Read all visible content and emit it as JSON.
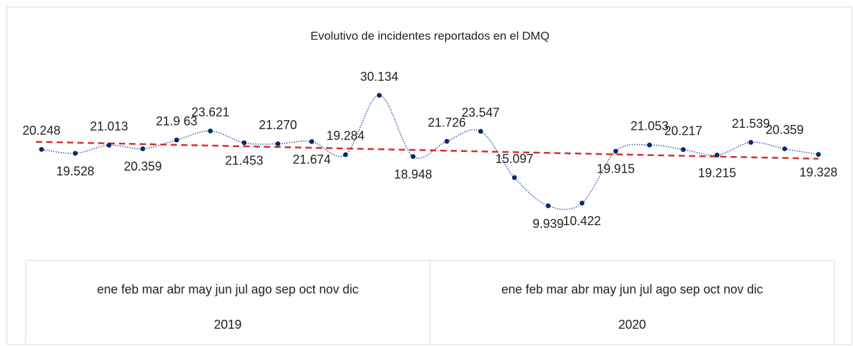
{
  "chart_data": {
    "type": "line",
    "title": "Evolutivo de incidentes reportados en el DMQ",
    "categories": [
      "ene",
      "feb",
      "mar",
      "abr",
      "may",
      "jun",
      "jul",
      "ago",
      "sep",
      "oct",
      "nov",
      "dic",
      "ene",
      "feb",
      "mar",
      "abr",
      "may",
      "jun",
      "jul",
      "ago",
      "sep",
      "oct",
      "nov",
      "dic"
    ],
    "category_groups": [
      "2019",
      "2020"
    ],
    "series": [
      {
        "color": "#0b2a6b",
        "values": [
          20248,
          19528,
          21013,
          20359,
          21963,
          23621,
          21453,
          21270,
          21674,
          19284,
          30134,
          18948,
          21726,
          23547,
          15097,
          9939,
          10422,
          19915,
          21053,
          20217,
          19215,
          21539,
          20359,
          19328
        ],
        "value_labels": [
          "20.248",
          "19.528",
          "21.013",
          "20.359",
          "21.9 63",
          "23.621",
          "21.453",
          "21.270",
          "21.674",
          "19.284",
          "30.134",
          "18.948",
          "21.726",
          "23.547",
          "15.097",
          "9.939",
          "10.422",
          "19.915",
          "21.053",
          "20.217",
          "19.215",
          "21.539",
          "20.359",
          "19.328"
        ]
      }
    ],
    "trendline": true,
    "trendline_color": "#d62b2b",
    "grid": false
  }
}
